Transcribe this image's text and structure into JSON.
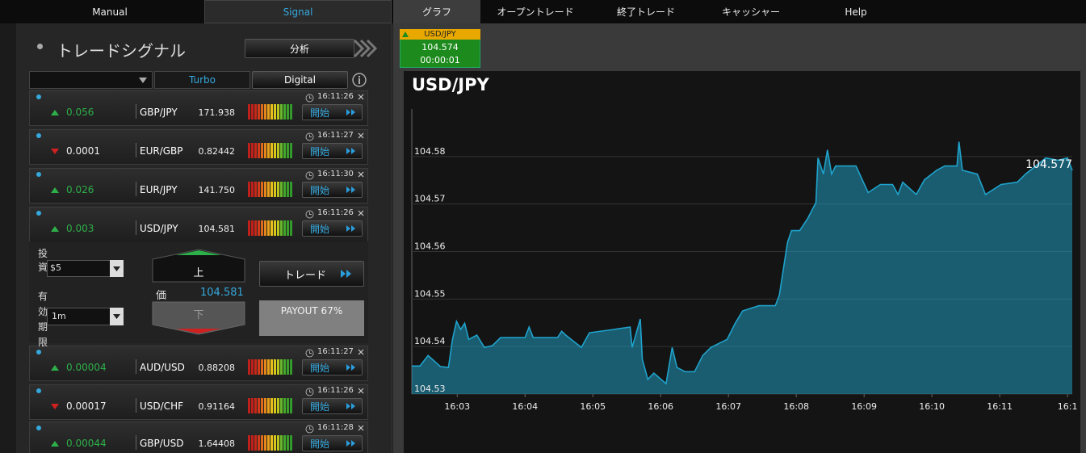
{
  "nav": {
    "tabs": [
      "Manual",
      "Signal",
      "グラフ",
      "オープントレード",
      "終了トレード",
      "キャッシャー",
      "Help"
    ]
  },
  "signal_panel": {
    "title": "トレードシグナル",
    "analyze_button": "分析",
    "filters": [
      "Turbo",
      "Digital"
    ],
    "start_label": "開始",
    "signals": [
      {
        "direction": "up",
        "change": "0.056",
        "pair": "GBP/JPY",
        "price": "171.938",
        "time": "16:11:26"
      },
      {
        "direction": "down",
        "change": "0.0001",
        "pair": "EUR/GBP",
        "price": "0.82442",
        "time": "16:11:27"
      },
      {
        "direction": "up",
        "change": "0.026",
        "pair": "EUR/JPY",
        "price": "141.750",
        "time": "16:11:30"
      },
      {
        "direction": "up",
        "change": "0.003",
        "pair": "USD/JPY",
        "price": "104.581",
        "time": "16:11:26"
      },
      {
        "direction": "up",
        "change": "0.00004",
        "pair": "AUD/USD",
        "price": "0.88208",
        "time": "16:11:27"
      },
      {
        "direction": "down",
        "change": "0.00017",
        "pair": "USD/CHF",
        "price": "0.91164",
        "time": "16:11:26"
      },
      {
        "direction": "up",
        "change": "0.00044",
        "pair": "GBP/USD",
        "price": "1.64408",
        "time": "16:11:28"
      }
    ]
  },
  "trade_form": {
    "investment_label": "投資",
    "investment": "$5",
    "expiry_label": "有効期限",
    "expiry": "1m",
    "up_label": "上",
    "price_label": "価",
    "price": "104.581",
    "down_label": "下",
    "trade_button": "トレード",
    "payout": "PAYOUT 67%"
  },
  "ticker": {
    "pair": "USD/JPY",
    "price": "104.574",
    "timer": "00:00:01"
  },
  "chart_data": {
    "type": "area",
    "title": "USD/JPY",
    "color": "#1fa3cc",
    "grid": true,
    "last_label": "104.577",
    "x": [
      2.33,
      2.45,
      2.57,
      2.75,
      2.87,
      2.93,
      2.99,
      3.05,
      3.11,
      3.17,
      3.29,
      3.4,
      3.52,
      3.64,
      4.0,
      4.06,
      4.12,
      4.48,
      4.54,
      4.6,
      4.83,
      4.95,
      5.31,
      5.55,
      5.58,
      5.7,
      5.73,
      5.81,
      5.9,
      6.08,
      6.17,
      6.24,
      6.36,
      6.5,
      6.62,
      6.74,
      6.98,
      7.1,
      7.21,
      7.45,
      7.69,
      7.75,
      7.87,
      7.93,
      8.05,
      8.17,
      8.29,
      8.32,
      8.4,
      8.46,
      8.52,
      8.58,
      8.88,
      9.06,
      9.24,
      9.42,
      9.5,
      9.57,
      9.77,
      9.89,
      10.07,
      10.19,
      10.37,
      10.4,
      10.45,
      10.67,
      10.79,
      11.02,
      11.26,
      11.38,
      11.68,
      11.86,
      12.0,
      12.07
    ],
    "values": [
      104.5359,
      104.5359,
      104.5381,
      104.5358,
      104.5356,
      104.5415,
      104.5453,
      104.5436,
      104.5449,
      104.5415,
      104.5424,
      104.5398,
      104.5402,
      104.5419,
      104.5419,
      104.5441,
      104.5419,
      104.5419,
      104.5432,
      104.5424,
      104.5398,
      104.5429,
      104.5436,
      104.5441,
      104.5398,
      104.5458,
      104.5373,
      104.5331,
      104.5344,
      104.5322,
      104.5398,
      104.5356,
      104.5347,
      104.5347,
      104.5381,
      104.5398,
      104.5415,
      104.5449,
      104.5475,
      104.5486,
      104.5486,
      104.5508,
      104.5619,
      104.5644,
      104.5644,
      104.567,
      104.5703,
      104.5797,
      104.5763,
      104.5814,
      104.5763,
      104.578,
      104.578,
      104.5724,
      104.5741,
      104.5741,
      104.572,
      104.5746,
      104.572,
      104.5751,
      104.5771,
      104.578,
      104.578,
      104.5831,
      104.5771,
      104.5763,
      104.572,
      104.5741,
      104.5746,
      104.5763,
      104.5797,
      104.5792,
      104.5797,
      104.5771
    ],
    "xlim": [
      2.33,
      12.07
    ],
    "ylim": [
      104.53,
      104.59
    ],
    "xticks": [
      {
        "value": 3,
        "label": "16:03"
      },
      {
        "value": 4,
        "label": "16:04"
      },
      {
        "value": 5,
        "label": "16:05"
      },
      {
        "value": 6,
        "label": "16:06"
      },
      {
        "value": 7,
        "label": "16:07"
      },
      {
        "value": 8,
        "label": "16:08"
      },
      {
        "value": 9,
        "label": "16:09"
      },
      {
        "value": 10,
        "label": "16:10"
      },
      {
        "value": 11,
        "label": "16:11"
      },
      {
        "value": 12,
        "label": "16:1"
      }
    ],
    "yticks": [
      104.53,
      104.54,
      104.55,
      104.56,
      104.57,
      104.58
    ]
  }
}
